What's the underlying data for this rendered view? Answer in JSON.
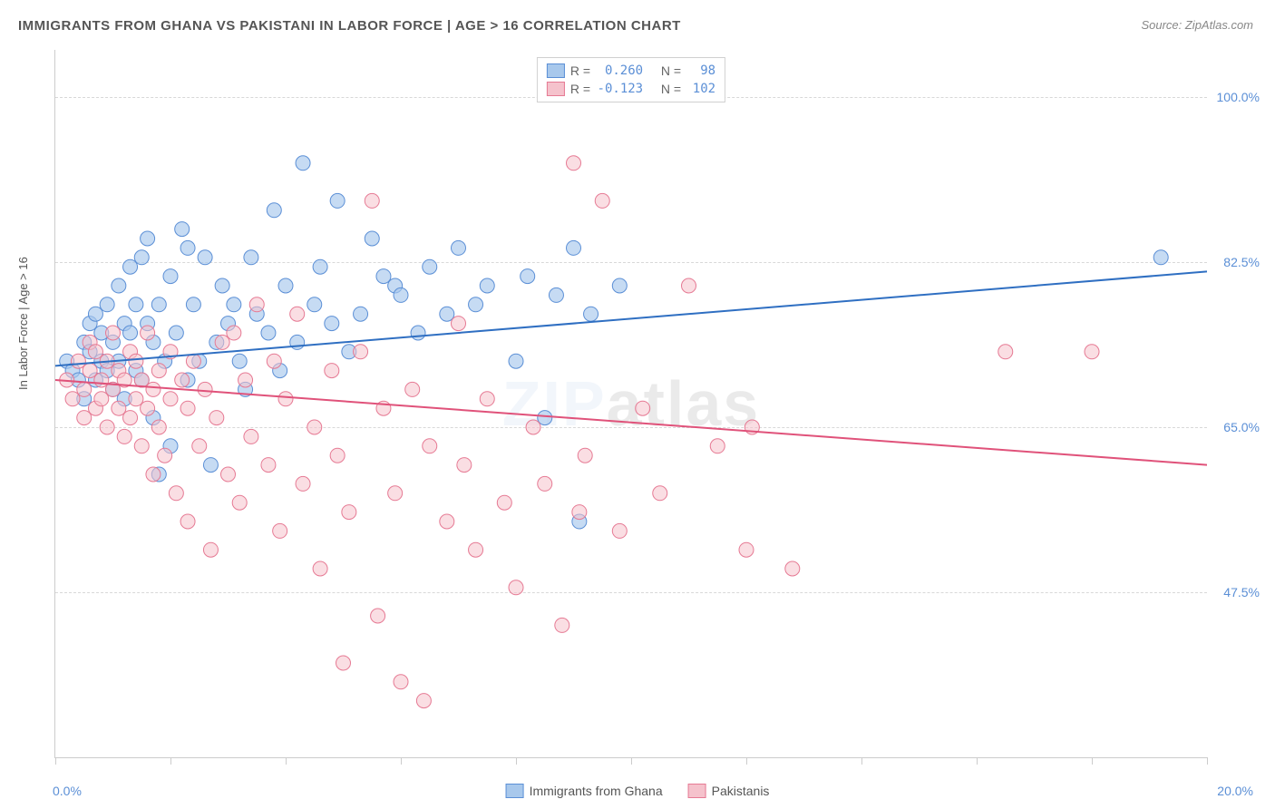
{
  "title": "IMMIGRANTS FROM GHANA VS PAKISTANI IN LABOR FORCE | AGE > 16 CORRELATION CHART",
  "source": "Source: ZipAtlas.com",
  "ylabel": "In Labor Force | Age > 16",
  "watermark_a": "ZIP",
  "watermark_b": "atlas",
  "chart": {
    "type": "scatter",
    "x_domain": [
      0,
      20
    ],
    "y_domain": [
      30,
      105
    ],
    "x_left_label": "0.0%",
    "x_right_label": "20.0%",
    "x_ticks": [
      0,
      2,
      4,
      6,
      8,
      10,
      12,
      14,
      16,
      18,
      20
    ],
    "gridlines": [
      {
        "y": 100.0,
        "label": "100.0%"
      },
      {
        "y": 82.5,
        "label": "82.5%"
      },
      {
        "y": 65.0,
        "label": "65.0%"
      },
      {
        "y": 47.5,
        "label": "47.5%"
      }
    ],
    "series": [
      {
        "name": "Immigrants from Ghana",
        "fill": "#a8c8ec",
        "stroke": "#5b8fd6",
        "marker_radius": 8,
        "marker_opacity": 0.65,
        "r": "0.260",
        "n": "98",
        "trend": {
          "x1": 0,
          "y1": 71.5,
          "x2": 20,
          "y2": 81.5,
          "color": "#2f6fc2",
          "width": 2
        },
        "points": [
          [
            0.2,
            72
          ],
          [
            0.3,
            71
          ],
          [
            0.4,
            70
          ],
          [
            0.5,
            74
          ],
          [
            0.5,
            68
          ],
          [
            0.6,
            73
          ],
          [
            0.6,
            76
          ],
          [
            0.7,
            70
          ],
          [
            0.7,
            77
          ],
          [
            0.8,
            72
          ],
          [
            0.8,
            75
          ],
          [
            0.9,
            71
          ],
          [
            0.9,
            78
          ],
          [
            1.0,
            69
          ],
          [
            1.0,
            74
          ],
          [
            1.1,
            72
          ],
          [
            1.1,
            80
          ],
          [
            1.2,
            76
          ],
          [
            1.2,
            68
          ],
          [
            1.3,
            75
          ],
          [
            1.3,
            82
          ],
          [
            1.4,
            71
          ],
          [
            1.4,
            78
          ],
          [
            1.5,
            83
          ],
          [
            1.5,
            70
          ],
          [
            1.6,
            76
          ],
          [
            1.6,
            85
          ],
          [
            1.7,
            66
          ],
          [
            1.7,
            74
          ],
          [
            1.8,
            78
          ],
          [
            1.8,
            60
          ],
          [
            1.9,
            72
          ],
          [
            2.0,
            63
          ],
          [
            2.0,
            81
          ],
          [
            2.1,
            75
          ],
          [
            2.2,
            86
          ],
          [
            2.3,
            70
          ],
          [
            2.3,
            84
          ],
          [
            2.4,
            78
          ],
          [
            2.5,
            72
          ],
          [
            2.6,
            83
          ],
          [
            2.7,
            61
          ],
          [
            2.8,
            74
          ],
          [
            2.9,
            80
          ],
          [
            3.0,
            76
          ],
          [
            3.1,
            78
          ],
          [
            3.2,
            72
          ],
          [
            3.3,
            69
          ],
          [
            3.4,
            83
          ],
          [
            3.5,
            77
          ],
          [
            3.7,
            75
          ],
          [
            3.8,
            88
          ],
          [
            3.9,
            71
          ],
          [
            4.0,
            80
          ],
          [
            4.2,
            74
          ],
          [
            4.3,
            93
          ],
          [
            4.5,
            78
          ],
          [
            4.6,
            82
          ],
          [
            4.8,
            76
          ],
          [
            4.9,
            89
          ],
          [
            5.1,
            73
          ],
          [
            5.3,
            77
          ],
          [
            5.5,
            85
          ],
          [
            5.7,
            81
          ],
          [
            5.9,
            80
          ],
          [
            6.0,
            79
          ],
          [
            6.3,
            75
          ],
          [
            6.5,
            82
          ],
          [
            6.8,
            77
          ],
          [
            7.0,
            84
          ],
          [
            7.3,
            78
          ],
          [
            7.5,
            80
          ],
          [
            8.0,
            72
          ],
          [
            8.2,
            81
          ],
          [
            8.5,
            66
          ],
          [
            8.7,
            79
          ],
          [
            9.0,
            84
          ],
          [
            9.1,
            55
          ],
          [
            9.3,
            77
          ],
          [
            9.8,
            80
          ],
          [
            19.2,
            83
          ]
        ]
      },
      {
        "name": "Pakistanis",
        "fill": "#f5c2cc",
        "stroke": "#e67a94",
        "marker_radius": 8,
        "marker_opacity": 0.55,
        "r": "-0.123",
        "n": "102",
        "trend": {
          "x1": 0,
          "y1": 70.0,
          "x2": 20,
          "y2": 61.0,
          "color": "#e0527a",
          "width": 2
        },
        "points": [
          [
            0.2,
            70
          ],
          [
            0.3,
            68
          ],
          [
            0.4,
            72
          ],
          [
            0.5,
            69
          ],
          [
            0.5,
            66
          ],
          [
            0.6,
            71
          ],
          [
            0.6,
            74
          ],
          [
            0.7,
            67
          ],
          [
            0.7,
            73
          ],
          [
            0.8,
            70
          ],
          [
            0.8,
            68
          ],
          [
            0.9,
            65
          ],
          [
            0.9,
            72
          ],
          [
            1.0,
            69
          ],
          [
            1.0,
            75
          ],
          [
            1.1,
            67
          ],
          [
            1.1,
            71
          ],
          [
            1.2,
            64
          ],
          [
            1.2,
            70
          ],
          [
            1.3,
            73
          ],
          [
            1.3,
            66
          ],
          [
            1.4,
            68
          ],
          [
            1.4,
            72
          ],
          [
            1.5,
            63
          ],
          [
            1.5,
            70
          ],
          [
            1.6,
            67
          ],
          [
            1.6,
            75
          ],
          [
            1.7,
            60
          ],
          [
            1.7,
            69
          ],
          [
            1.8,
            71
          ],
          [
            1.8,
            65
          ],
          [
            1.9,
            62
          ],
          [
            2.0,
            68
          ],
          [
            2.0,
            73
          ],
          [
            2.1,
            58
          ],
          [
            2.2,
            70
          ],
          [
            2.3,
            55
          ],
          [
            2.3,
            67
          ],
          [
            2.4,
            72
          ],
          [
            2.5,
            63
          ],
          [
            2.6,
            69
          ],
          [
            2.7,
            52
          ],
          [
            2.8,
            66
          ],
          [
            2.9,
            74
          ],
          [
            3.0,
            60
          ],
          [
            3.1,
            75
          ],
          [
            3.2,
            57
          ],
          [
            3.3,
            70
          ],
          [
            3.4,
            64
          ],
          [
            3.5,
            78
          ],
          [
            3.7,
            61
          ],
          [
            3.8,
            72
          ],
          [
            3.9,
            54
          ],
          [
            4.0,
            68
          ],
          [
            4.2,
            77
          ],
          [
            4.3,
            59
          ],
          [
            4.5,
            65
          ],
          [
            4.6,
            50
          ],
          [
            4.8,
            71
          ],
          [
            4.9,
            62
          ],
          [
            5.0,
            40
          ],
          [
            5.1,
            56
          ],
          [
            5.3,
            73
          ],
          [
            5.5,
            89
          ],
          [
            5.6,
            45
          ],
          [
            5.7,
            67
          ],
          [
            5.9,
            58
          ],
          [
            6.0,
            38
          ],
          [
            6.2,
            69
          ],
          [
            6.4,
            36
          ],
          [
            6.5,
            63
          ],
          [
            6.8,
            55
          ],
          [
            7.0,
            76
          ],
          [
            7.1,
            61
          ],
          [
            7.3,
            52
          ],
          [
            7.5,
            68
          ],
          [
            7.8,
            57
          ],
          [
            8.0,
            48
          ],
          [
            8.3,
            65
          ],
          [
            8.5,
            59
          ],
          [
            8.8,
            44
          ],
          [
            9.0,
            93
          ],
          [
            9.1,
            56
          ],
          [
            9.2,
            62
          ],
          [
            9.5,
            89
          ],
          [
            9.8,
            54
          ],
          [
            10.2,
            67
          ],
          [
            10.5,
            58
          ],
          [
            11.0,
            80
          ],
          [
            11.5,
            63
          ],
          [
            12.0,
            52
          ],
          [
            12.1,
            65
          ],
          [
            12.8,
            50
          ],
          [
            16.5,
            73
          ],
          [
            18.0,
            73
          ]
        ]
      }
    ]
  },
  "legend_bottom": [
    {
      "label": "Immigrants from Ghana",
      "fill": "#a8c8ec",
      "stroke": "#5b8fd6"
    },
    {
      "label": "Pakistanis",
      "fill": "#f5c2cc",
      "stroke": "#e67a94"
    }
  ]
}
